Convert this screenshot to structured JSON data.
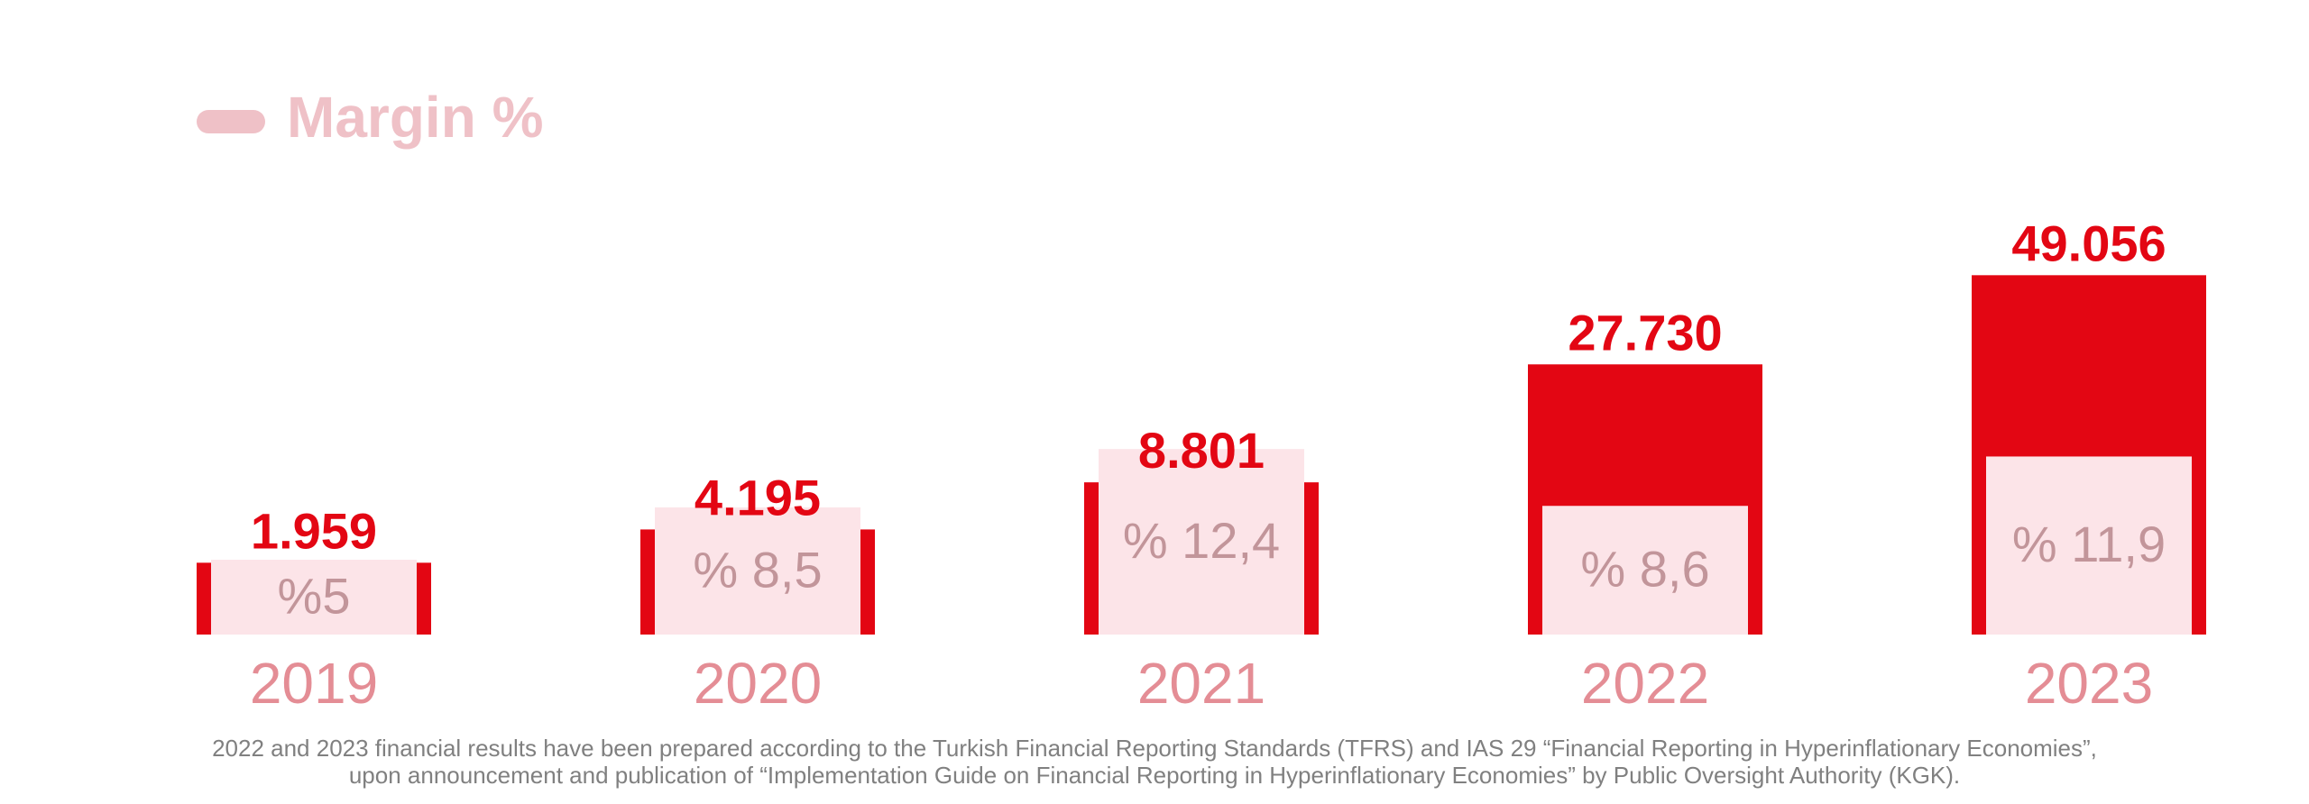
{
  "chart_data": {
    "type": "bar",
    "categories": [
      "2019",
      "2020",
      "2021",
      "2022",
      "2023"
    ],
    "series": [
      {
        "name": "",
        "values": [
          1959,
          4195,
          8801,
          27730,
          49056
        ],
        "value_labels": [
          "1.959",
          "4.195",
          "8.801",
          "27.730",
          "49.056"
        ],
        "color": "#e30613"
      },
      {
        "name": "Margin %",
        "values": [
          5,
          8.5,
          12.4,
          8.6,
          11.9
        ],
        "value_labels": [
          "%5",
          "% 8,5",
          "% 12,4",
          "% 8,6",
          "% 11,9"
        ],
        "color": "#fce4e8"
      }
    ],
    "legend": {
      "position": "top-left",
      "label": "Margin %",
      "color": "#efc1c7"
    },
    "title": "",
    "xlabel": "",
    "ylabel": "",
    "grid": false,
    "colors": {
      "value_label": "#e30613",
      "margin_label": "#c2959a",
      "category_label": "#e48d95"
    }
  },
  "footnote": {
    "line1": "2022 and 2023 financial results have been prepared according to the Turkish Financial Reporting Standards (TFRS) and IAS 29 “Financial Reporting in Hyperinflationary Economies”,",
    "line2": "upon announcement and publication of “Implementation Guide on Financial Reporting in Hyperinflationary Economies” by Public Oversight Authority (KGK)."
  }
}
